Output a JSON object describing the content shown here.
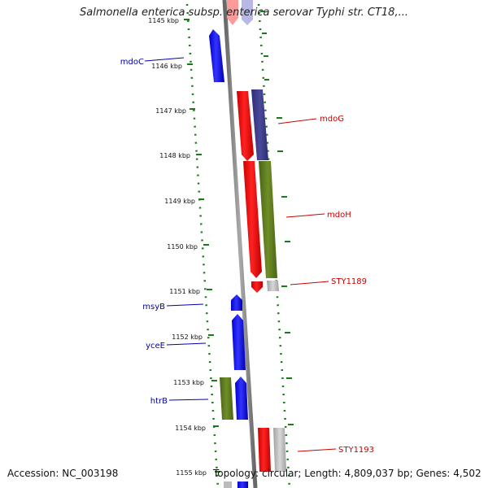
{
  "title": "Salmonella enterica subsp. enterica serovar Typhi str. CT18,...",
  "footer": {
    "accession": "Accession: NC_003198",
    "summary": "Topology: circular; Length: 4,809,037 bp; Genes: 4,502"
  },
  "ticks": [
    "1145 kbp",
    "1146 kbp",
    "1147 kbp",
    "1148 kbp",
    "1149 kbp",
    "1150 kbp",
    "1151 kbp",
    "1152 kbp",
    "1153 kbp",
    "1154 kbp",
    "1155 kbp"
  ],
  "genes_left": [
    "mdoC",
    "msyB",
    "yceE",
    "htrB"
  ],
  "genes_right": [
    "mdoG",
    "mdoH",
    "STY1189",
    "STY1193"
  ],
  "colors": {
    "forward_gene": "#0000ff",
    "reverse_gene": "#ff0000",
    "cog_purple": "#3a3a8a",
    "cog_olive": "#5e7a1e",
    "unknown_gray": "#b8b8b8",
    "backbone": "#888888",
    "tick_marks": "#1a7a1a",
    "left_label": "#0000aa",
    "right_label": "#cc0000"
  }
}
